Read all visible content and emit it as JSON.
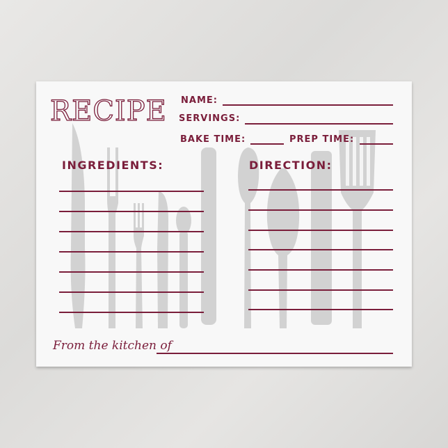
{
  "card": {
    "title": "RECIPE",
    "name_label": "NAME:",
    "servings_label": "SERVINGS:",
    "bake_time_label": "BAKE TIME:",
    "prep_time_label": "PREP TIME:",
    "ingredients_label": "INGREDIENTS:",
    "direction_label": "DIRECTION:",
    "footer_label": "From the kitchen of",
    "accent_color": "#7a1d3a",
    "utensil_color": "#cfcfcf"
  }
}
